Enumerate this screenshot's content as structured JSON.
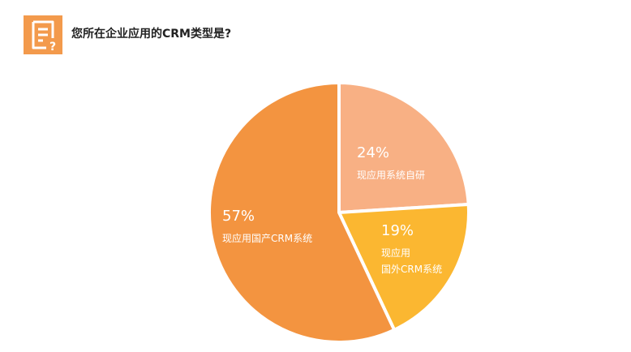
{
  "header": {
    "title": "您所在企业应用的CRM类型是?",
    "icon": "survey-question-icon",
    "icon_color": "#f39a4c"
  },
  "chart_data": {
    "type": "pie",
    "title": "您所在企业应用的CRM类型是?",
    "start_angle_deg": 0,
    "direction": "clockwise",
    "slices": [
      {
        "label": [
          "现应用系统自研"
        ],
        "percent_label": "24%",
        "value": 24,
        "color": "#f8b084"
      },
      {
        "label": [
          "现应用",
          "国外CRM系统"
        ],
        "percent_label": "19%",
        "value": 19,
        "color": "#fbb731"
      },
      {
        "label": [
          "现应用国产CRM系统"
        ],
        "percent_label": "57%",
        "value": 57,
        "color": "#f39440"
      }
    ]
  }
}
